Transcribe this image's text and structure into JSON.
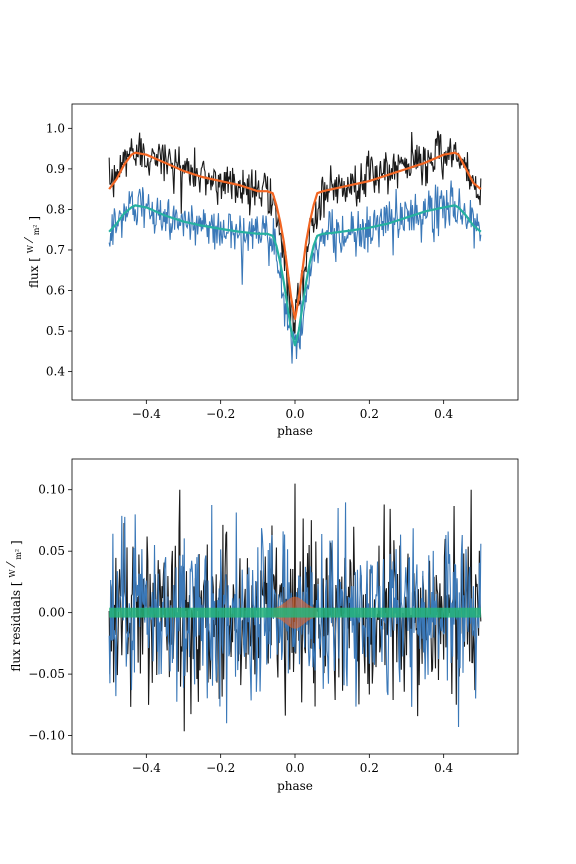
{
  "chart_data": [
    {
      "type": "line",
      "title": "",
      "xlabel": "phase",
      "ylabel": "flux [W/m²]",
      "ylabel_main": "flux",
      "ylabel_unit_num": "W",
      "ylabel_unit_den": "m²",
      "xlim": [
        -0.6,
        0.6
      ],
      "ylim": [
        0.33,
        1.06
      ],
      "xticks": [
        -0.4,
        -0.2,
        0.0,
        0.2,
        0.4
      ],
      "xtick_labels": [
        "−0.4",
        "−0.2",
        "0.0",
        "0.2",
        "0.4"
      ],
      "yticks": [
        0.4,
        0.5,
        0.6,
        0.7,
        0.8,
        0.9,
        1.0
      ],
      "ytick_labels": [
        "0.4",
        "0.5",
        "0.6",
        "0.7",
        "0.8",
        "0.9",
        "1.0"
      ],
      "grid": false,
      "colors": {
        "data1": "#1a1a1a",
        "model1": "#f26522",
        "data2": "#3a78b8",
        "model2": "#26b1a0"
      },
      "series": [
        {
          "role": "data1",
          "x": [
            -0.5,
            -0.475,
            -0.45,
            -0.425,
            -0.4,
            -0.35,
            -0.3,
            -0.25,
            -0.2,
            -0.15,
            -0.1,
            -0.075,
            -0.05,
            -0.03,
            -0.015,
            0.0,
            0.015,
            0.03,
            0.05,
            0.075,
            0.1,
            0.15,
            0.2,
            0.25,
            0.3,
            0.35,
            0.4,
            0.425,
            0.45,
            0.475,
            0.5
          ],
          "y": [
            0.85,
            0.89,
            0.94,
            0.95,
            0.94,
            0.92,
            0.9,
            0.88,
            0.87,
            0.86,
            0.85,
            0.85,
            0.79,
            0.68,
            0.58,
            0.52,
            0.58,
            0.68,
            0.79,
            0.85,
            0.85,
            0.86,
            0.88,
            0.89,
            0.91,
            0.92,
            0.94,
            0.95,
            0.92,
            0.87,
            0.85
          ]
        },
        {
          "role": "model1",
          "x": [
            -0.5,
            -0.48,
            -0.46,
            -0.44,
            -0.43,
            -0.4,
            -0.35,
            -0.3,
            -0.25,
            -0.2,
            -0.15,
            -0.1,
            -0.075,
            -0.06,
            -0.05,
            -0.04,
            -0.03,
            -0.02,
            -0.01,
            0.0,
            0.01,
            0.02,
            0.03,
            0.04,
            0.05,
            0.06,
            0.075,
            0.1,
            0.15,
            0.2,
            0.25,
            0.3,
            0.35,
            0.4,
            0.43,
            0.44,
            0.46,
            0.48,
            0.5
          ],
          "y": [
            0.85,
            0.875,
            0.91,
            0.935,
            0.94,
            0.935,
            0.915,
            0.895,
            0.88,
            0.87,
            0.86,
            0.845,
            0.845,
            0.84,
            0.81,
            0.77,
            0.72,
            0.65,
            0.58,
            0.53,
            0.58,
            0.65,
            0.72,
            0.77,
            0.81,
            0.84,
            0.845,
            0.85,
            0.86,
            0.87,
            0.885,
            0.9,
            0.915,
            0.935,
            0.94,
            0.935,
            0.9,
            0.865,
            0.85
          ]
        },
        {
          "role": "data2",
          "x": [
            -0.5,
            -0.475,
            -0.45,
            -0.425,
            -0.4,
            -0.35,
            -0.3,
            -0.25,
            -0.2,
            -0.15,
            -0.1,
            -0.075,
            -0.05,
            -0.03,
            -0.015,
            0.0,
            0.015,
            0.03,
            0.05,
            0.075,
            0.1,
            0.15,
            0.2,
            0.25,
            0.3,
            0.35,
            0.4,
            0.425,
            0.45,
            0.475,
            0.5
          ],
          "y": [
            0.74,
            0.77,
            0.8,
            0.81,
            0.8,
            0.78,
            0.77,
            0.76,
            0.75,
            0.74,
            0.74,
            0.74,
            0.69,
            0.58,
            0.5,
            0.45,
            0.5,
            0.58,
            0.69,
            0.74,
            0.74,
            0.74,
            0.75,
            0.77,
            0.78,
            0.79,
            0.8,
            0.81,
            0.79,
            0.76,
            0.74
          ]
        },
        {
          "role": "model2",
          "x": [
            -0.5,
            -0.48,
            -0.46,
            -0.44,
            -0.43,
            -0.4,
            -0.35,
            -0.3,
            -0.25,
            -0.2,
            -0.15,
            -0.1,
            -0.075,
            -0.06,
            -0.05,
            -0.04,
            -0.03,
            -0.02,
            -0.01,
            0.0,
            0.01,
            0.02,
            0.03,
            0.04,
            0.05,
            0.06,
            0.075,
            0.1,
            0.15,
            0.2,
            0.25,
            0.3,
            0.35,
            0.4,
            0.43,
            0.44,
            0.46,
            0.48,
            0.5
          ],
          "y": [
            0.745,
            0.765,
            0.79,
            0.805,
            0.81,
            0.805,
            0.785,
            0.77,
            0.76,
            0.752,
            0.745,
            0.74,
            0.74,
            0.735,
            0.71,
            0.67,
            0.62,
            0.56,
            0.5,
            0.465,
            0.5,
            0.56,
            0.62,
            0.67,
            0.71,
            0.735,
            0.74,
            0.742,
            0.748,
            0.755,
            0.765,
            0.78,
            0.795,
            0.805,
            0.81,
            0.805,
            0.785,
            0.76,
            0.745
          ]
        }
      ]
    },
    {
      "type": "line",
      "title": "",
      "xlabel": "phase",
      "ylabel": "flux residuals [W/m²]",
      "ylabel_main": "flux residuals",
      "ylabel_unit_num": "W",
      "ylabel_unit_den": "m²",
      "xlim": [
        -0.6,
        0.6
      ],
      "ylim": [
        -0.115,
        0.125
      ],
      "xticks": [
        -0.4,
        -0.2,
        0.0,
        0.2,
        0.4
      ],
      "xtick_labels": [
        "−0.4",
        "−0.2",
        "0.0",
        "0.2",
        "0.4"
      ],
      "yticks": [
        -0.1,
        -0.05,
        0.0,
        0.05,
        0.1
      ],
      "ytick_labels": [
        "−0.10",
        "−0.05",
        "0.00",
        "0.05",
        "0.10"
      ],
      "grid": false,
      "colors": {
        "res1": "#1a1a1a",
        "res2": "#3a78b8",
        "band1": "#f26522",
        "band2": "#26b47a"
      },
      "noise_amplitude": {
        "res1": 0.05,
        "res2": 0.05
      },
      "peak_values": {
        "res1_max": 0.105,
        "res2_min": -0.093
      },
      "band_halfwidth": {
        "band2": 0.004,
        "band1_center": 0.01
      }
    }
  ]
}
